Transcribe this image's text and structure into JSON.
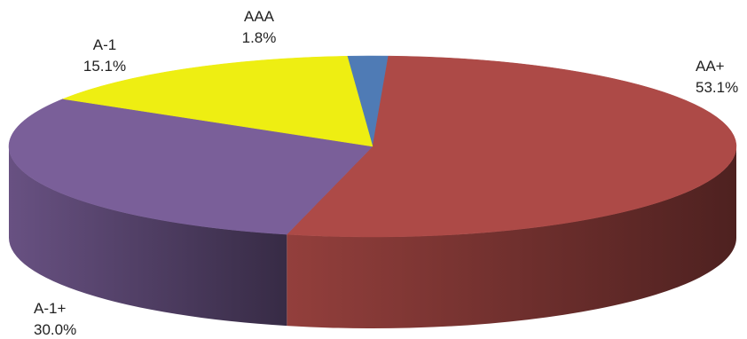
{
  "chart_data": {
    "type": "pie",
    "style": "3d",
    "title": "",
    "slices": [
      {
        "label": "AAA",
        "value": 1.8,
        "display": "1.8%",
        "color": "#4f7bb5"
      },
      {
        "label": "AA+",
        "value": 53.1,
        "display": "53.1%",
        "color": "#ad4a47"
      },
      {
        "label": "A-1+",
        "value": 30.0,
        "display": "30.0%",
        "color": "#7a5f99"
      },
      {
        "label": "A-1",
        "value": 15.1,
        "display": "15.1%",
        "color": "#eeee12"
      }
    ]
  }
}
